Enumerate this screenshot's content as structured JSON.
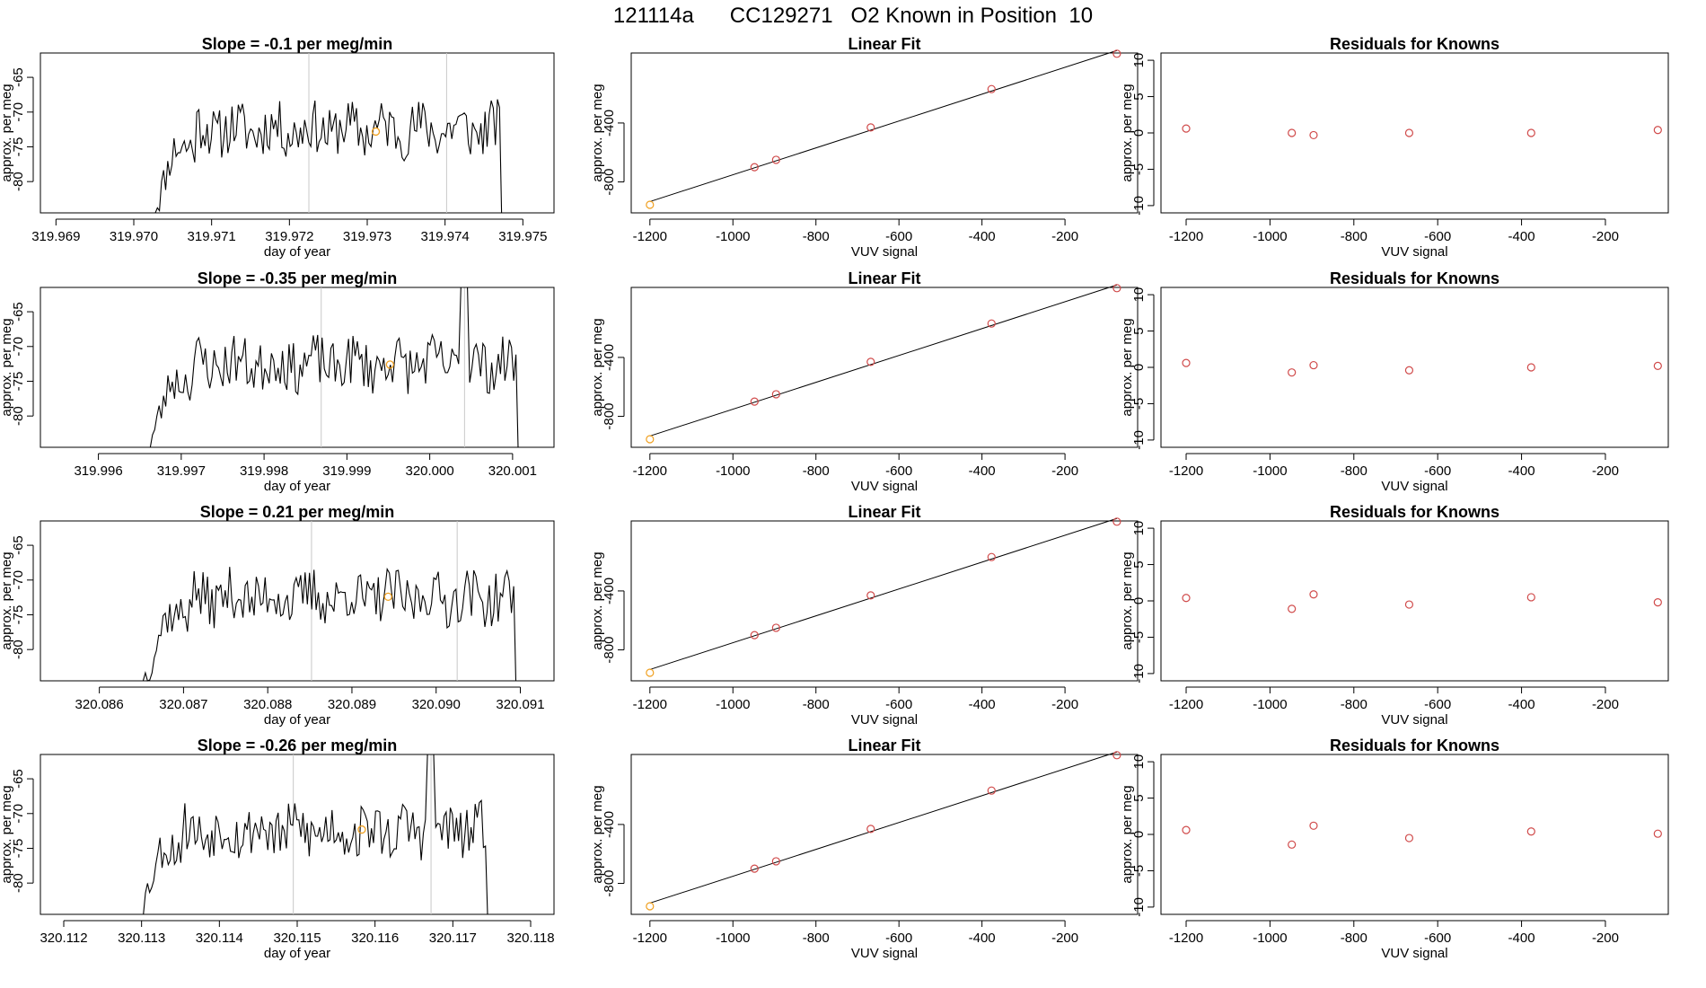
{
  "page": {
    "title": "121114a      CC129271   O2 Known in Position  10"
  },
  "colors": {
    "trace": "#000000",
    "marker_orange": "#f0a020",
    "marker_red": "#d04a4a",
    "guide_line": "#c8c8c8",
    "axis": "#000000"
  },
  "chart_data": [
    {
      "type": "line",
      "row": 0,
      "title": "Slope =  -0.1  per meg/min",
      "xlabel": "day of year",
      "ylabel": "approx. per meg",
      "xlim": [
        319.9688,
        319.9754
      ],
      "ylim": [
        -84.5,
        -61.5
      ],
      "xticks": [
        319.969,
        319.97,
        319.971,
        319.972,
        319.973,
        319.974,
        319.975
      ],
      "xtick_labels": [
        "319.969",
        "319.970",
        "319.971",
        "319.972",
        "319.973",
        "319.974",
        "319.975"
      ],
      "yticks": [
        -65,
        -70,
        -75,
        -80
      ],
      "ytick_labels": [
        "-65",
        "-70",
        "-75",
        "-80"
      ],
      "vlines": [
        319.97225,
        319.97402
      ],
      "start": 319.97025,
      "end": 319.97478,
      "noise_seed": 11,
      "spike": null,
      "highlight": {
        "x": 319.97311,
        "y": -72.8
      }
    },
    {
      "type": "line",
      "row": 1,
      "title": "Slope =  -0.35  per meg/min",
      "xlabel": "day of year",
      "ylabel": "approx. per meg",
      "xlim": [
        319.9953,
        320.0015
      ],
      "ylim": [
        -84.5,
        -61.5
      ],
      "xticks": [
        319.996,
        319.997,
        319.998,
        319.999,
        320.0,
        320.001
      ],
      "xtick_labels": [
        "319.996",
        "319.997",
        "319.998",
        "319.999",
        "320.000",
        "320.001"
      ],
      "yticks": [
        -65,
        -70,
        -75,
        -80
      ],
      "ytick_labels": [
        "-65",
        "-70",
        "-75",
        "-80"
      ],
      "vlines": [
        319.99869,
        320.00042
      ],
      "start": 319.9966,
      "end": 320.00112,
      "noise_seed": 23,
      "spike": {
        "x": 320.00042,
        "y": -61.5
      },
      "highlight": {
        "x": 319.99952,
        "y": -72.6
      }
    },
    {
      "type": "line",
      "row": 2,
      "title": "Slope =  0.21  per meg/min",
      "xlabel": "day of year",
      "ylabel": "approx. per meg",
      "xlim": [
        320.0853,
        320.0914
      ],
      "ylim": [
        -84.5,
        -61.5
      ],
      "xticks": [
        320.086,
        320.087,
        320.088,
        320.089,
        320.09,
        320.091
      ],
      "xtick_labels": [
        "320.086",
        "320.087",
        "320.088",
        "320.089",
        "320.090",
        "320.091"
      ],
      "yticks": [
        -65,
        -70,
        -75,
        -80
      ],
      "ytick_labels": [
        "-65",
        "-70",
        "-75",
        "-80"
      ],
      "vlines": [
        320.08852,
        320.09025
      ],
      "start": 320.08652,
      "end": 320.091,
      "noise_seed": 37,
      "spike": null,
      "highlight": {
        "x": 320.08943,
        "y": -72.4
      }
    },
    {
      "type": "line",
      "row": 3,
      "title": "Slope =  -0.26  per meg/min",
      "xlabel": "day of year",
      "ylabel": "approx. per meg",
      "xlim": [
        320.1117,
        320.1183
      ],
      "ylim": [
        -84.5,
        -61.5
      ],
      "xticks": [
        320.112,
        320.113,
        320.114,
        320.115,
        320.116,
        320.117,
        320.118
      ],
      "xtick_labels": [
        "320.112",
        "320.113",
        "320.114",
        "320.115",
        "320.116",
        "320.117",
        "320.118"
      ],
      "yticks": [
        -65,
        -70,
        -75,
        -80
      ],
      "ytick_labels": [
        "-65",
        "-70",
        "-75",
        "-80"
      ],
      "vlines": [
        320.11495,
        320.11672
      ],
      "start": 320.11297,
      "end": 320.1175,
      "noise_seed": 53,
      "spike": {
        "x": 320.11672,
        "y": -62
      },
      "highlight": {
        "x": 320.11583,
        "y": -72.3
      }
    },
    {
      "type": "scatter",
      "row": 0,
      "fit_line": true,
      "title": "Linear Fit",
      "xlabel": "VUV signal",
      "ylabel": "approx. per meg",
      "xlim": [
        -1245,
        -25
      ],
      "ylim": [
        -1010,
        75
      ],
      "xticks": [
        -1200,
        -1000,
        -800,
        -600,
        -400,
        -200
      ],
      "xtick_labels": [
        "-1200",
        "-1000",
        "-800",
        "-600",
        "-400",
        "-200"
      ],
      "yticks": [
        -400,
        -800
      ],
      "ytick_labels": [
        "-400",
        "-800"
      ],
      "x": [
        -1200,
        -948,
        -896,
        -668,
        -377,
        -75
      ],
      "y": [
        -955,
        -700,
        -650,
        -430,
        -170,
        70
      ],
      "highlight_index": 0
    },
    {
      "type": "scatter",
      "row": 1,
      "fit_line": true,
      "title": "Linear Fit",
      "xlabel": "VUV signal",
      "ylabel": "approx. per meg",
      "xlim": [
        -1245,
        -25
      ],
      "ylim": [
        -1010,
        75
      ],
      "xticks": [
        -1200,
        -1000,
        -800,
        -600,
        -400,
        -200
      ],
      "xtick_labels": [
        "-1200",
        "-1000",
        "-800",
        "-600",
        "-400",
        "-200"
      ],
      "yticks": [
        -400,
        -800
      ],
      "ytick_labels": [
        "-400",
        "-800"
      ],
      "x": [
        -1200,
        -948,
        -896,
        -668,
        -377,
        -75
      ],
      "y": [
        -955,
        -700,
        -650,
        -430,
        -170,
        70
      ],
      "highlight_index": 0
    },
    {
      "type": "scatter",
      "row": 2,
      "fit_line": true,
      "title": "Linear Fit",
      "xlabel": "VUV signal",
      "ylabel": "approx. per meg",
      "xlim": [
        -1245,
        -25
      ],
      "ylim": [
        -1010,
        75
      ],
      "xticks": [
        -1200,
        -1000,
        -800,
        -600,
        -400,
        -200
      ],
      "xtick_labels": [
        "-1200",
        "-1000",
        "-800",
        "-600",
        "-400",
        "-200"
      ],
      "yticks": [
        -400,
        -800
      ],
      "ytick_labels": [
        "-400",
        "-800"
      ],
      "x": [
        -1200,
        -948,
        -896,
        -668,
        -377,
        -75
      ],
      "y": [
        -955,
        -700,
        -650,
        -430,
        -170,
        70
      ],
      "highlight_index": 0
    },
    {
      "type": "scatter",
      "row": 3,
      "fit_line": true,
      "title": "Linear Fit",
      "xlabel": "VUV signal",
      "ylabel": "approx. per meg",
      "xlim": [
        -1245,
        -25
      ],
      "ylim": [
        -1010,
        75
      ],
      "xticks": [
        -1200,
        -1000,
        -800,
        -600,
        -400,
        -200
      ],
      "xtick_labels": [
        "-1200",
        "-1000",
        "-800",
        "-600",
        "-400",
        "-200"
      ],
      "yticks": [
        -400,
        -800
      ],
      "ytick_labels": [
        "-400",
        "-800"
      ],
      "x": [
        -1200,
        -948,
        -896,
        -668,
        -377,
        -75
      ],
      "y": [
        -955,
        -700,
        -650,
        -430,
        -170,
        70
      ],
      "highlight_index": 0
    },
    {
      "type": "scatter",
      "row": 0,
      "fit_line": false,
      "title": "Residuals for Knowns",
      "xlabel": "VUV signal",
      "ylabel": "approx. per meg",
      "xlim": [
        -1260,
        -50
      ],
      "ylim": [
        -11,
        11
      ],
      "xticks": [
        -1200,
        -1000,
        -800,
        -600,
        -400,
        -200
      ],
      "xtick_labels": [
        "-1200",
        "-1000",
        "-800",
        "-600",
        "-400",
        "-200"
      ],
      "yticks": [
        10,
        5,
        0,
        -5,
        -10
      ],
      "ytick_labels": [
        "10",
        "5",
        "0",
        "-5",
        "-10"
      ],
      "x": [
        -1200,
        -948,
        -896,
        -668,
        -377,
        -75
      ],
      "y": [
        0.6,
        0.0,
        -0.3,
        0.0,
        0.0,
        0.4
      ],
      "highlight_index": -1
    },
    {
      "type": "scatter",
      "row": 1,
      "fit_line": false,
      "title": "Residuals for Knowns",
      "xlabel": "VUV signal",
      "ylabel": "approx. per meg",
      "xlim": [
        -1260,
        -50
      ],
      "ylim": [
        -11,
        11
      ],
      "xticks": [
        -1200,
        -1000,
        -800,
        -600,
        -400,
        -200
      ],
      "xtick_labels": [
        "-1200",
        "-1000",
        "-800",
        "-600",
        "-400",
        "-200"
      ],
      "yticks": [
        10,
        5,
        0,
        -5,
        -10
      ],
      "ytick_labels": [
        "10",
        "5",
        "0",
        "-5",
        "-10"
      ],
      "x": [
        -1200,
        -948,
        -896,
        -668,
        -377,
        -75
      ],
      "y": [
        0.6,
        -0.7,
        0.3,
        -0.4,
        0.0,
        0.2
      ],
      "highlight_index": -1
    },
    {
      "type": "scatter",
      "row": 2,
      "fit_line": false,
      "title": "Residuals for Knowns",
      "xlabel": "VUV signal",
      "ylabel": "approx. per meg",
      "xlim": [
        -1260,
        -50
      ],
      "ylim": [
        -11,
        11
      ],
      "xticks": [
        -1200,
        -1000,
        -800,
        -600,
        -400,
        -200
      ],
      "xtick_labels": [
        "-1200",
        "-1000",
        "-800",
        "-600",
        "-400",
        "-200"
      ],
      "yticks": [
        10,
        5,
        0,
        -5,
        -10
      ],
      "ytick_labels": [
        "10",
        "5",
        "0",
        "-5",
        "-10"
      ],
      "x": [
        -1200,
        -948,
        -896,
        -668,
        -377,
        -75
      ],
      "y": [
        0.4,
        -1.1,
        0.9,
        -0.5,
        0.5,
        -0.2
      ],
      "highlight_index": -1
    },
    {
      "type": "scatter",
      "row": 3,
      "fit_line": false,
      "title": "Residuals for Knowns",
      "xlabel": "VUV signal",
      "ylabel": "approx. per meg",
      "xlim": [
        -1260,
        -50
      ],
      "ylim": [
        -11,
        11
      ],
      "xticks": [
        -1200,
        -1000,
        -800,
        -600,
        -400,
        -200
      ],
      "xtick_labels": [
        "-1200",
        "-1000",
        "-800",
        "-600",
        "-400",
        "-200"
      ],
      "yticks": [
        10,
        5,
        0,
        -5,
        -10
      ],
      "ytick_labels": [
        "10",
        "5",
        "0",
        "-5",
        "-10"
      ],
      "x": [
        -1200,
        -948,
        -896,
        -668,
        -377,
        -75
      ],
      "y": [
        0.6,
        -1.4,
        1.2,
        -0.5,
        0.4,
        0.1
      ],
      "highlight_index": -1
    }
  ]
}
